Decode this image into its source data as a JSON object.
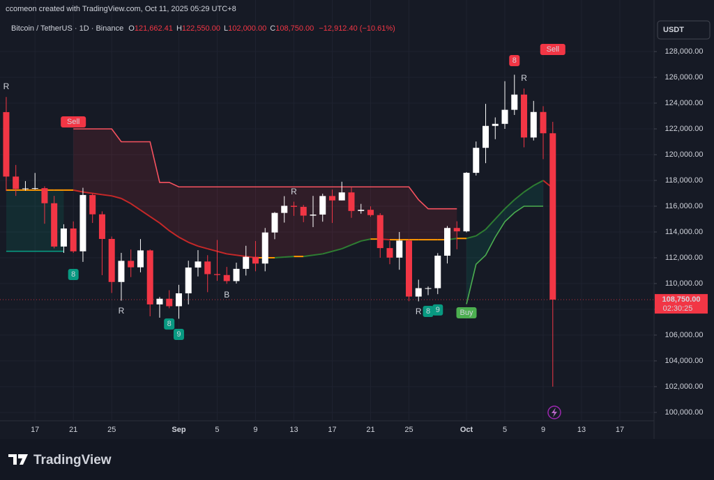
{
  "header": {
    "watermark": "ccomeon created with TradingView.com, Oct 11, 2025 05:29 UTC+8"
  },
  "footer": {
    "brand": "TradingView"
  },
  "chart_data": {
    "type": "candlestick",
    "legend": {
      "symbol": "Bitcoin / TetherUS · 1D · Binance",
      "o_label": "O",
      "o": "121,662.41",
      "h_label": "H",
      "h": "122,550.00",
      "l_label": "L",
      "l": "102,000.00",
      "c_label": "C",
      "c": "108,750.00",
      "change": "−12,912.40 (−10.61%)"
    },
    "currency": "USDT",
    "countdown": "02:30:25",
    "last_price": {
      "value": 108750,
      "label": "108,750.00"
    },
    "up_color": "#ffffff",
    "down_color": "#f23645",
    "x": [
      0,
      1,
      2,
      3,
      4,
      5,
      6,
      7,
      8,
      9,
      10,
      11,
      12,
      13,
      14,
      15,
      16,
      17,
      18,
      19,
      20,
      21,
      22,
      23,
      24,
      25,
      26,
      27,
      28,
      29,
      30,
      31,
      32,
      33,
      34,
      35,
      36,
      37,
      38,
      39,
      40,
      41,
      42,
      43,
      44,
      45,
      46,
      47,
      48,
      49,
      50,
      51,
      52,
      53,
      54,
      55,
      56,
      57
    ],
    "open": [
      123300,
      118300,
      117340,
      117380,
      117400,
      116230,
      112870,
      114270,
      112500,
      116870,
      115370,
      113460,
      110120,
      111760,
      111260,
      112570,
      108380,
      108820,
      108240,
      109240,
      111240,
      111710,
      110730,
      110660,
      110190,
      111140,
      112070,
      111550,
      113960,
      115480,
      116030,
      115950,
      115270,
      115350,
      116790,
      116450,
      117070,
      115630,
      115720,
      115310,
      112750,
      112010,
      113330,
      108990,
      109640,
      109640,
      112160,
      114310,
      114050,
      118590,
      120530,
      122230,
      122390,
      123480,
      124660,
      121330,
      123310,
      121660
    ],
    "high": [
      124470,
      119200,
      117950,
      118580,
      117540,
      116800,
      114600,
      114820,
      117430,
      117000,
      115600,
      113650,
      112380,
      112640,
      113450,
      112650,
      108950,
      109480,
      109900,
      111770,
      112590,
      112200,
      113380,
      111290,
      111620,
      112930,
      113300,
      114310,
      115550,
      116780,
      116350,
      116100,
      116800,
      116970,
      117290,
      117900,
      117450,
      116180,
      115990,
      115460,
      113300,
      114000,
      113450,
      110300,
      109770,
      112360,
      114460,
      114830,
      118650,
      121020,
      123940,
      122890,
      125700,
      126200,
      125130,
      124170,
      123760,
      122550
    ],
    "low": [
      117180,
      116800,
      117200,
      117280,
      114640,
      112730,
      112380,
      112380,
      111680,
      114700,
      110650,
      109270,
      108670,
      110500,
      110870,
      107460,
      107350,
      108080,
      107270,
      108380,
      110550,
      109330,
      110210,
      109980,
      110000,
      110620,
      110950,
      110950,
      113440,
      114730,
      115250,
      114760,
      114380,
      114800,
      114700,
      116450,
      115100,
      115420,
      115180,
      112000,
      111500,
      111070,
      108630,
      108620,
      109100,
      109180,
      111560,
      112660,
      113970,
      118380,
      119340,
      121200,
      122000,
      123080,
      120570,
      121100,
      119650,
      102000
    ],
    "close": [
      118300,
      117340,
      117380,
      117400,
      116230,
      112870,
      114270,
      112500,
      116870,
      115370,
      113460,
      110120,
      111760,
      111260,
      112570,
      108380,
      108820,
      108240,
      109240,
      111240,
      111710,
      110730,
      110660,
      110190,
      111140,
      112070,
      111550,
      113960,
      115480,
      116030,
      115950,
      115270,
      115350,
      116790,
      116450,
      117070,
      115630,
      115720,
      115310,
      112750,
      112010,
      113330,
      108990,
      109640,
      109640,
      112160,
      114310,
      114050,
      118590,
      120530,
      122230,
      122390,
      123480,
      124660,
      121330,
      123310,
      121660,
      108750
    ],
    "stops": [
      {
        "color": "#089981",
        "fill": "rgba(8,153,129,0.14)",
        "values": [
          112500,
          112500,
          112500,
          112500,
          112500,
          112500,
          112500,
          null,
          null,
          null,
          null,
          null,
          null,
          null,
          null,
          null,
          null,
          null,
          null,
          null,
          null,
          null,
          null,
          null,
          null,
          null,
          null,
          null,
          null,
          null,
          null,
          null,
          null,
          null,
          null,
          null,
          null,
          null,
          null,
          null,
          null,
          null,
          null,
          null,
          null,
          null,
          null,
          null,
          null,
          null,
          null,
          null,
          null,
          null,
          null,
          null,
          null,
          null
        ]
      },
      {
        "color": "#f7525f",
        "fill": "rgba(242,54,69,0.12)",
        "values": [
          null,
          null,
          null,
          null,
          null,
          null,
          null,
          122000,
          122000,
          122000,
          122000,
          122000,
          121000,
          121000,
          121000,
          121000,
          117850,
          117850,
          117500,
          117500,
          117500,
          117500,
          117500,
          117500,
          117500,
          117500,
          117500,
          117500,
          117500,
          117500,
          117500,
          117500,
          117500,
          117500,
          117500,
          117500,
          117500,
          117500,
          117500,
          117500,
          117500,
          117500,
          117500,
          116500,
          115800,
          115800,
          115800,
          115800,
          null,
          null,
          null,
          null,
          null,
          null,
          null,
          null,
          null,
          null
        ]
      },
      {
        "color": "#4caf50",
        "fill": "rgba(8,153,129,0.14)",
        "values": [
          null,
          null,
          null,
          null,
          null,
          null,
          null,
          null,
          null,
          null,
          null,
          null,
          null,
          null,
          null,
          null,
          null,
          null,
          null,
          null,
          null,
          null,
          null,
          null,
          null,
          null,
          null,
          null,
          null,
          null,
          null,
          null,
          null,
          null,
          null,
          null,
          null,
          null,
          null,
          null,
          null,
          null,
          null,
          null,
          null,
          null,
          null,
          null,
          108400,
          111500,
          112200,
          113600,
          114800,
          115500,
          116000,
          116000,
          116000,
          null
        ]
      }
    ],
    "trend": {
      "values": [
        117250,
        117250,
        117250,
        117250,
        117250,
        117250,
        117250,
        117250,
        117100,
        117000,
        116900,
        116800,
        116600,
        116200,
        115700,
        115200,
        114700,
        114100,
        113600,
        113200,
        112900,
        112700,
        112500,
        112300,
        112200,
        112100,
        112000,
        112000,
        112000,
        112050,
        112100,
        112100,
        112200,
        112300,
        112500,
        112700,
        113000,
        113300,
        113450,
        113450,
        113400,
        113400,
        113400,
        113400,
        113400,
        113400,
        113400,
        113500,
        113500,
        113700,
        114200,
        115000,
        115800,
        116500,
        117100,
        117600,
        118000,
        117400
      ],
      "colors": {
        "up": "#2e7d32",
        "down": "#c62828",
        "flat": "#ff9800"
      }
    },
    "annotations": [
      {
        "text": "R",
        "x": 0,
        "price": 125240,
        "color": "#ffb74d",
        "style": "text"
      },
      {
        "text": "Sell",
        "x": 7,
        "price": 122540,
        "color": "#f23645",
        "style": "box"
      },
      {
        "text": "8",
        "x": 7,
        "price": 110700,
        "color": "#089981",
        "style": "box"
      },
      {
        "text": "R",
        "x": 12,
        "price": 107840,
        "color": "#26c6da",
        "style": "text"
      },
      {
        "text": "8",
        "x": 17,
        "price": 106860,
        "color": "#089981",
        "style": "box"
      },
      {
        "text": "9",
        "x": 18,
        "price": 106050,
        "color": "#089981",
        "style": "box"
      },
      {
        "text": "B",
        "x": 23,
        "price": 109080,
        "color": "#2196f3",
        "style": "text"
      },
      {
        "text": "R",
        "x": 30,
        "price": 117080,
        "color": "#ffb74d",
        "style": "text"
      },
      {
        "text": "R",
        "x": 43,
        "price": 107780,
        "color": "#26c6da",
        "style": "text"
      },
      {
        "text": "8",
        "x": 44,
        "price": 107840,
        "color": "#089981",
        "style": "box"
      },
      {
        "text": "9",
        "x": 45,
        "price": 107950,
        "color": "#089981",
        "style": "box"
      },
      {
        "text": "Buy",
        "x": 48,
        "price": 107730,
        "color": "#4caf50",
        "style": "box"
      },
      {
        "text": "8",
        "x": 53,
        "price": 127300,
        "color": "#f23645",
        "style": "box"
      },
      {
        "text": "R",
        "x": 54,
        "price": 125890,
        "color": "#ffb74d",
        "style": "text"
      },
      {
        "text": "Sell",
        "x": 57,
        "price": 128160,
        "color": "#f23645",
        "style": "box"
      }
    ],
    "xlim": [
      -0.65,
      67.56
    ],
    "xticks": [
      {
        "value": 3,
        "label": "17"
      },
      {
        "value": 7,
        "label": "21"
      },
      {
        "value": 11,
        "label": "25"
      },
      {
        "value": 18,
        "label": "Sep"
      },
      {
        "value": 22,
        "label": "5"
      },
      {
        "value": 26,
        "label": "9"
      },
      {
        "value": 30,
        "label": "13"
      },
      {
        "value": 34,
        "label": "17"
      },
      {
        "value": 38,
        "label": "21"
      },
      {
        "value": 42,
        "label": "25"
      },
      {
        "value": 48,
        "label": "Oct"
      },
      {
        "value": 52,
        "label": "5"
      },
      {
        "value": 56,
        "label": "9"
      },
      {
        "value": 60,
        "label": "13"
      },
      {
        "value": 64,
        "label": "17"
      }
    ],
    "ylim": [
      99350,
      132000
    ],
    "yticks": [
      {
        "value": 100000,
        "label": "100,000.00"
      },
      {
        "value": 102000,
        "label": "102,000.00"
      },
      {
        "value": 104000,
        "label": "104,000.00"
      },
      {
        "value": 106000,
        "label": "106,000.00"
      },
      {
        "value": 108000,
        "label": "108,000.00"
      },
      {
        "value": 110000,
        "label": "110,000.00"
      },
      {
        "value": 112000,
        "label": "112,000.00"
      },
      {
        "value": 114000,
        "label": "114,000.00"
      },
      {
        "value": 116000,
        "label": "116,000.00"
      },
      {
        "value": 118000,
        "label": "118,000.00"
      },
      {
        "value": 120000,
        "label": "120,000.00"
      },
      {
        "value": 122000,
        "label": "122,000.00"
      },
      {
        "value": 124000,
        "label": "124,000.00"
      },
      {
        "value": 126000,
        "label": "126,000.00"
      },
      {
        "value": 128000,
        "label": "128,000.00"
      }
    ],
    "grid": true
  }
}
